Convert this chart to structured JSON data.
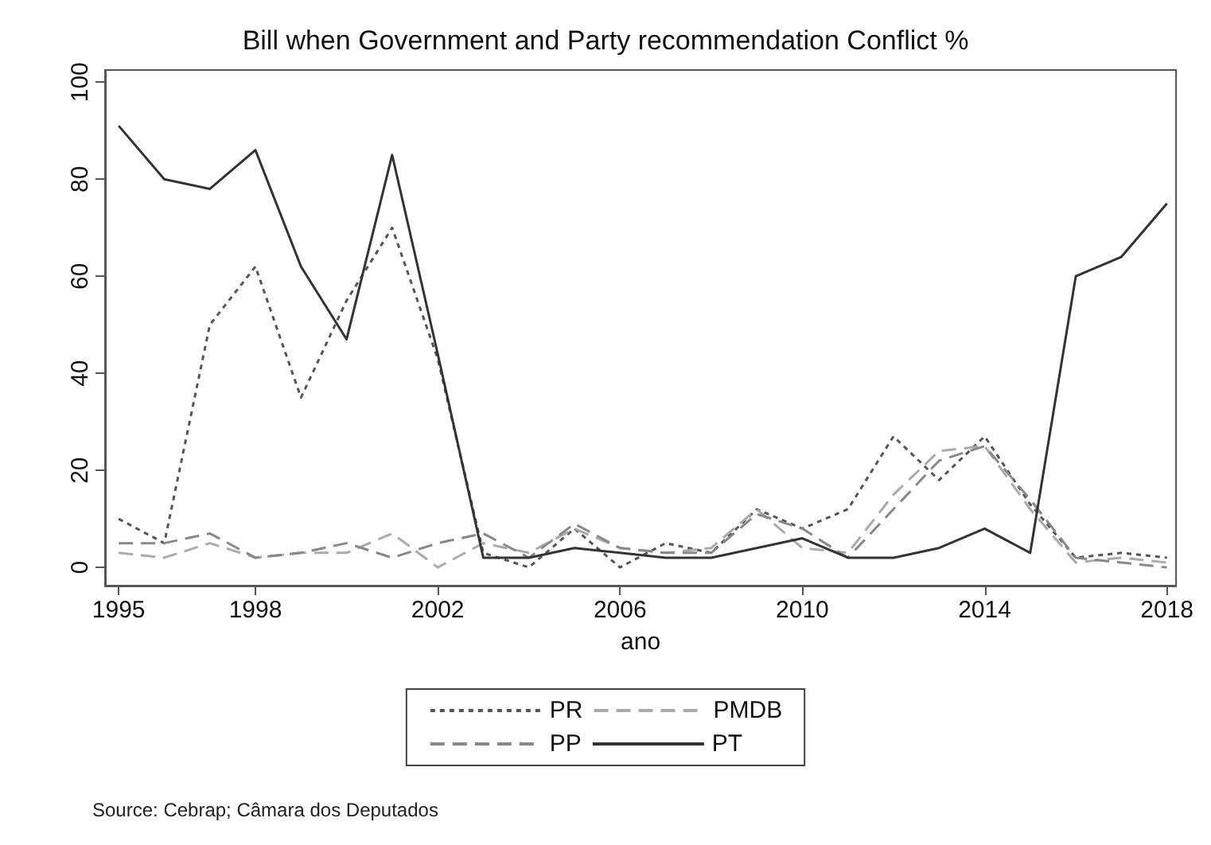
{
  "chart_data": {
    "type": "line",
    "title": "Bill when Government and Party recommendation Conflict %",
    "xlabel": "ano",
    "annotations": [
      "Source: Cebrap; Câmara dos Deputados"
    ],
    "x": [
      1995,
      1996,
      1997,
      1998,
      1999,
      2000,
      2001,
      2002,
      2003,
      2004,
      2005,
      2006,
      2007,
      2008,
      2009,
      2010,
      2011,
      2012,
      2013,
      2014,
      2015,
      2016,
      2017,
      2018
    ],
    "series": [
      {
        "name": "PR",
        "color": "#555555",
        "line_style": "dotted",
        "values": [
          10,
          5,
          50,
          62,
          35,
          55,
          70,
          43,
          3,
          0,
          8,
          0,
          5,
          3,
          12,
          8,
          12,
          27,
          18,
          27,
          13,
          2,
          3,
          2
        ]
      },
      {
        "name": "PMDB",
        "color": "#aaaaaa",
        "line_style": "dashed",
        "values": [
          3,
          2,
          5,
          2,
          3,
          3,
          7,
          0,
          5,
          3,
          8,
          4,
          3,
          4,
          12,
          4,
          3,
          15,
          24,
          25,
          12,
          1,
          2,
          1
        ]
      },
      {
        "name": "PP",
        "color": "#888888",
        "line_style": "dashed",
        "values": [
          5,
          5,
          7,
          2,
          3,
          5,
          2,
          5,
          7,
          2,
          9,
          4,
          3,
          3,
          11,
          8,
          2,
          12,
          22,
          25,
          14,
          2,
          1,
          0
        ]
      },
      {
        "name": "PT",
        "color": "#333333",
        "line_style": "solid",
        "values": [
          91,
          80,
          78,
          86,
          62,
          47,
          85,
          44,
          2,
          2,
          4,
          3,
          2,
          2,
          4,
          6,
          2,
          2,
          4,
          8,
          3,
          60,
          64,
          75
        ]
      }
    ],
    "xlim": [
      1994.7,
      2018.2
    ],
    "xticks": [
      1995,
      1998,
      2002,
      2006,
      2010,
      2014,
      2018
    ],
    "ylim": [
      -3.75,
      102.5
    ],
    "yticks": [
      0,
      20,
      40,
      60,
      80,
      100
    ],
    "grid": false,
    "legend": "bottom",
    "marker": "none"
  }
}
